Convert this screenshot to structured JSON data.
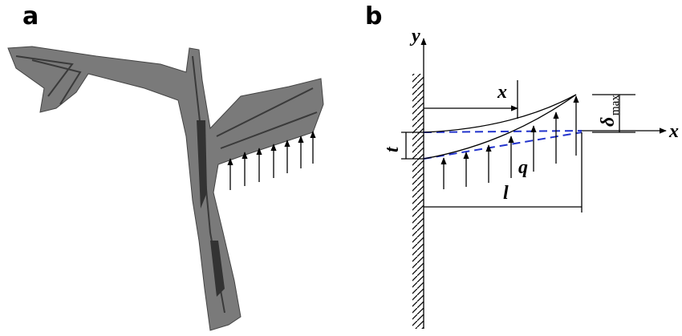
{
  "panel_labels": [
    "a",
    "b"
  ],
  "diagram": {
    "y_axis": "y",
    "x_axis": "x",
    "distance": "x",
    "deflection": {
      "symbol": "δ",
      "subscript": "max"
    },
    "thickness": "t",
    "load": "q",
    "length": "l"
  }
}
